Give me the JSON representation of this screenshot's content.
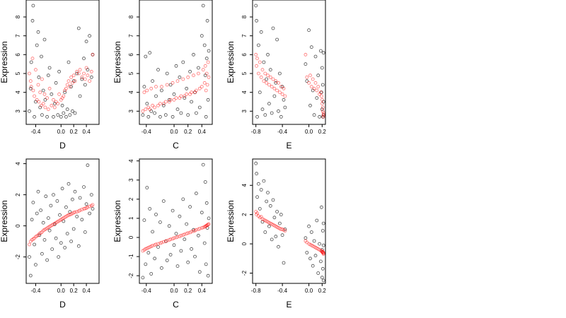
{
  "chart_data": [
    {
      "type": "scatter",
      "xlabel": "D",
      "ylabel": "Expression",
      "xlim": [
        -0.55,
        0.6
      ],
      "ylim": [
        2.3,
        8.9
      ],
      "xticks": [
        "-0.4",
        "0.0",
        "0.2",
        "0.4"
      ],
      "xtick_values": [
        -0.4,
        0.0,
        0.2,
        0.4
      ],
      "yticks": [
        "3",
        "4",
        "5",
        "6",
        "7",
        "8"
      ],
      "ytick_values": [
        3,
        4,
        5,
        6,
        7,
        8
      ],
      "grid": false,
      "x": [
        -0.5,
        -0.48,
        -0.47,
        -0.45,
        -0.44,
        -0.42,
        -0.4,
        -0.38,
        -0.36,
        -0.35,
        -0.33,
        -0.31,
        -0.3,
        -0.28,
        -0.26,
        -0.25,
        -0.22,
        -0.2,
        -0.18,
        -0.15,
        -0.12,
        -0.1,
        -0.08,
        -0.05,
        -0.03,
        0.0,
        0.02,
        0.04,
        0.06,
        0.08,
        0.1,
        0.12,
        0.14,
        0.16,
        0.18,
        0.2,
        0.22,
        0.25,
        0.28,
        0.3,
        0.33,
        0.36,
        0.38,
        0.4,
        0.42,
        0.45,
        0.48,
        0.5
      ],
      "series": [
        {
          "color": "#000000",
          "values": [
            3.0,
            4.2,
            5.6,
            7.8,
            8.6,
            2.7,
            3.5,
            6.5,
            7.2,
            4.8,
            3.2,
            5.9,
            2.8,
            4.1,
            6.8,
            3.6,
            2.7,
            4.9,
            5.3,
            3.9,
            2.7,
            3.4,
            4.5,
            2.8,
            5.1,
            2.7,
            3.3,
            2.9,
            4.0,
            2.7,
            3.1,
            5.6,
            2.8,
            4.3,
            3.0,
            4.6,
            2.9,
            5.0,
            7.4,
            3.8,
            4.7,
            5.8,
            4.4,
            6.7,
            5.2,
            7.0,
            4.8,
            6.0
          ]
        },
        {
          "color": "#ff0000",
          "values": [
            5.0,
            4.6,
            4.3,
            5.8,
            4.1,
            3.8,
            5.2,
            3.6,
            4.4,
            3.5,
            4.0,
            3.3,
            4.7,
            3.4,
            3.9,
            3.2,
            3.7,
            3.1,
            4.2,
            3.3,
            3.6,
            3.2,
            3.5,
            3.4,
            3.9,
            3.6,
            3.7,
            3.8,
            4.1,
            4.2,
            4.4,
            4.6,
            4.3,
            4.8,
            4.5,
            4.9,
            4.6,
            5.1,
            5.0,
            5.2,
            4.8,
            5.0,
            4.7,
            5.3,
            4.9,
            4.6,
            5.1,
            6.0
          ]
        }
      ]
    },
    {
      "type": "scatter",
      "xlabel": "C",
      "ylabel": "Expression",
      "xlim": [
        -0.5,
        0.55
      ],
      "ylim": [
        2.3,
        8.9
      ],
      "xticks": [
        "-0.4",
        "0.0",
        "0.2",
        "0.4"
      ],
      "xtick_values": [
        -0.4,
        0.0,
        0.2,
        0.4
      ],
      "yticks": [
        "3",
        "4",
        "5",
        "6",
        "7",
        "8"
      ],
      "ytick_values": [
        3,
        4,
        5,
        6,
        7,
        8
      ],
      "grid": false,
      "x": [
        -0.45,
        -0.43,
        -0.41,
        -0.39,
        -0.37,
        -0.35,
        -0.33,
        -0.31,
        -0.28,
        -0.26,
        -0.23,
        -0.2,
        -0.18,
        -0.15,
        -0.12,
        -0.1,
        -0.07,
        -0.05,
        -0.02,
        0.0,
        0.03,
        0.05,
        0.08,
        0.1,
        0.13,
        0.15,
        0.18,
        0.2,
        0.23,
        0.25,
        0.28,
        0.3,
        0.32,
        0.35,
        0.37,
        0.4,
        0.42,
        0.44,
        0.45,
        0.46,
        0.47,
        0.48,
        0.49,
        0.5
      ],
      "series": [
        {
          "color": "#000000",
          "values": [
            2.8,
            4.3,
            5.9,
            3.4,
            2.7,
            6.1,
            3.0,
            4.6,
            2.9,
            3.8,
            5.2,
            2.7,
            4.1,
            3.3,
            2.8,
            5.0,
            3.6,
            4.4,
            2.7,
            3.9,
            5.4,
            3.1,
            4.8,
            2.9,
            5.6,
            3.7,
            4.2,
            2.8,
            5.1,
            3.5,
            6.0,
            4.0,
            2.9,
            5.3,
            3.2,
            7.0,
            8.6,
            6.5,
            4.9,
            2.7,
            5.8,
            7.8,
            3.6,
            6.2
          ]
        },
        {
          "color": "#ff0000",
          "values": [
            3.0,
            4.0,
            3.1,
            4.1,
            3.2,
            3.1,
            4.2,
            3.3,
            3.2,
            4.3,
            3.3,
            3.4,
            4.3,
            3.4,
            3.5,
            4.4,
            3.5,
            3.6,
            4.5,
            3.6,
            3.7,
            4.6,
            3.7,
            3.8,
            4.7,
            3.8,
            3.9,
            4.8,
            3.9,
            4.0,
            4.9,
            4.0,
            4.1,
            5.0,
            4.2,
            4.3,
            5.2,
            4.5,
            5.4,
            4.1,
            5.0,
            4.4,
            5.6,
            4.8
          ]
        }
      ]
    },
    {
      "type": "scatter",
      "xlabel": "E",
      "ylabel": "Expression",
      "xlim": [
        -0.85,
        0.25
      ],
      "ylim": [
        2.3,
        8.9
      ],
      "xticks": [
        "-0.8",
        "-0.4",
        "0.0",
        "0.2"
      ],
      "xtick_values": [
        -0.8,
        -0.4,
        0.0,
        0.2
      ],
      "yticks": [
        "3",
        "4",
        "5",
        "6",
        "7",
        "8"
      ],
      "ytick_values": [
        3,
        4,
        5,
        6,
        7,
        8
      ],
      "grid": false,
      "x": [
        -0.8,
        -0.79,
        -0.78,
        -0.76,
        -0.74,
        -0.72,
        -0.7,
        -0.68,
        -0.66,
        -0.64,
        -0.62,
        -0.6,
        -0.58,
        -0.56,
        -0.54,
        -0.52,
        -0.5,
        -0.48,
        -0.46,
        -0.44,
        -0.42,
        -0.4,
        -0.38,
        -0.36,
        -0.05,
        -0.03,
        0.0,
        0.02,
        0.04,
        0.06,
        0.08,
        0.1,
        0.12,
        0.14,
        0.16,
        0.18,
        0.19,
        0.2,
        0.2,
        0.21,
        0.21,
        0.22,
        0.22,
        0.22
      ],
      "series": [
        {
          "color": "#000000",
          "values": [
            8.6,
            7.8,
            2.7,
            6.5,
            4.0,
            7.2,
            3.1,
            5.6,
            2.8,
            4.7,
            6.0,
            3.4,
            5.2,
            2.9,
            7.4,
            3.8,
            4.5,
            6.8,
            3.0,
            5.0,
            2.7,
            4.3,
            3.6,
            3.2,
            5.5,
            4.6,
            7.3,
            3.3,
            6.4,
            4.1,
            2.8,
            5.9,
            3.7,
            4.9,
            2.7,
            6.2,
            4.0,
            3.1,
            5.3,
            2.7,
            4.4,
            6.1,
            3.5,
            2.8
          ]
        },
        {
          "color": "#ff0000",
          "values": [
            6.0,
            5.4,
            5.8,
            5.0,
            5.6,
            4.8,
            5.2,
            4.6,
            5.0,
            4.5,
            4.9,
            4.4,
            4.8,
            4.3,
            4.7,
            4.2,
            4.6,
            4.1,
            4.5,
            4.0,
            4.3,
            3.9,
            4.2,
            3.8,
            6.0,
            4.8,
            4.5,
            4.9,
            4.3,
            4.7,
            4.2,
            4.5,
            4.1,
            4.3,
            3.9,
            4.0,
            3.8,
            3.6,
            3.4,
            3.2,
            3.0,
            2.9,
            2.8,
            2.7
          ]
        }
      ]
    },
    {
      "type": "scatter",
      "xlabel": "D",
      "ylabel": "Expression",
      "xlim": [
        -0.55,
        0.6
      ],
      "ylim": [
        -3.7,
        4.3
      ],
      "xticks": [
        "-0.4",
        "0.0",
        "0.2",
        "0.4"
      ],
      "xtick_values": [
        -0.4,
        0.0,
        0.2,
        0.4
      ],
      "yticks": [
        "-2",
        "0",
        "2",
        "4"
      ],
      "ytick_values": [
        -2,
        0,
        2,
        4
      ],
      "grid": false,
      "x": [
        -0.5,
        -0.48,
        -0.46,
        -0.44,
        -0.42,
        -0.4,
        -0.38,
        -0.36,
        -0.34,
        -0.32,
        -0.3,
        -0.28,
        -0.26,
        -0.24,
        -0.22,
        -0.2,
        -0.18,
        -0.16,
        -0.14,
        -0.12,
        -0.1,
        -0.08,
        -0.06,
        -0.04,
        -0.02,
        0.0,
        0.02,
        0.04,
        0.06,
        0.08,
        0.1,
        0.12,
        0.14,
        0.16,
        0.18,
        0.2,
        0.22,
        0.25,
        0.28,
        0.3,
        0.33,
        0.36,
        0.38,
        0.4,
        0.42,
        0.45,
        0.48,
        0.5
      ],
      "series": [
        {
          "color": "#000000",
          "values": [
            -2.0,
            -3.2,
            0.4,
            1.5,
            -1.2,
            -2.5,
            0.8,
            2.2,
            -0.6,
            1.0,
            -1.8,
            0.2,
            -0.9,
            1.9,
            -2.2,
            0.5,
            -0.3,
            1.3,
            -1.5,
            2.0,
            0.1,
            -0.8,
            1.6,
            -2.0,
            0.7,
            -1.1,
            2.4,
            0.3,
            -1.4,
            1.2,
            -0.5,
            2.7,
            0.9,
            -1.0,
            1.7,
            -0.2,
            2.2,
            0.6,
            -1.3,
            1.8,
            0.4,
            2.5,
            -0.4,
            1.4,
            3.9,
            0.8,
            2.0,
            1.1
          ]
        },
        {
          "color": "#ff0000",
          "values": [
            -1.2,
            -1.0,
            -0.9,
            -0.85,
            -0.8,
            -0.7,
            -0.65,
            -0.6,
            -0.5,
            -0.45,
            -0.4,
            -0.3,
            -0.25,
            -0.2,
            -0.15,
            -0.1,
            -0.05,
            0.0,
            0.05,
            0.1,
            0.15,
            0.2,
            0.25,
            0.3,
            0.35,
            0.4,
            0.45,
            0.5,
            0.55,
            0.6,
            0.65,
            0.7,
            0.72,
            0.75,
            0.8,
            0.85,
            0.88,
            0.9,
            0.95,
            1.0,
            1.05,
            1.1,
            1.12,
            1.15,
            1.2,
            1.25,
            1.3,
            1.35
          ]
        }
      ]
    },
    {
      "type": "scatter",
      "xlabel": "C",
      "ylabel": "Expression",
      "xlim": [
        -0.5,
        0.55
      ],
      "ylim": [
        -2.4,
        4.1
      ],
      "xticks": [
        "-0.4",
        "0.0",
        "0.2",
        "0.4"
      ],
      "xtick_values": [
        -0.4,
        0.0,
        0.2,
        0.4
      ],
      "yticks": [
        "-2",
        "-1",
        "0",
        "1",
        "2",
        "3",
        "4"
      ],
      "ytick_values": [
        -2,
        -1,
        0,
        1,
        2,
        3,
        4
      ],
      "grid": false,
      "x": [
        -0.45,
        -0.43,
        -0.41,
        -0.39,
        -0.37,
        -0.35,
        -0.33,
        -0.31,
        -0.28,
        -0.26,
        -0.23,
        -0.2,
        -0.18,
        -0.15,
        -0.12,
        -0.1,
        -0.07,
        -0.05,
        -0.02,
        0.0,
        0.03,
        0.05,
        0.08,
        0.1,
        0.13,
        0.15,
        0.18,
        0.2,
        0.23,
        0.25,
        0.28,
        0.3,
        0.32,
        0.35,
        0.37,
        0.4,
        0.42,
        0.44,
        0.45,
        0.46,
        0.47,
        0.48,
        0.49,
        0.5
      ],
      "series": [
        {
          "color": "#000000",
          "values": [
            -2.1,
            0.9,
            -1.4,
            2.6,
            -0.8,
            1.5,
            -1.9,
            0.3,
            -1.1,
            1.2,
            -0.5,
            0.8,
            -1.6,
            1.9,
            -0.2,
            -1.2,
            0.6,
            -0.9,
            1.4,
            -0.4,
            0.2,
            -1.5,
            1.1,
            -0.7,
            2.0,
            -0.1,
            0.7,
            -1.3,
            1.6,
            -0.6,
            0.4,
            -1.0,
            2.3,
            0.1,
            -1.8,
            1.3,
            3.8,
            -0.3,
            2.9,
            -1.4,
            1.8,
            0.5,
            -2.0,
            1.0
          ]
        },
        {
          "color": "#ff0000",
          "values": [
            -0.7,
            -0.65,
            -0.6,
            -0.57,
            -0.53,
            -0.5,
            -0.47,
            -0.43,
            -0.4,
            -0.36,
            -0.33,
            -0.3,
            -0.27,
            -0.23,
            -0.2,
            -0.17,
            -0.13,
            -0.1,
            -0.07,
            -0.03,
            0.0,
            0.03,
            0.06,
            0.1,
            0.13,
            0.16,
            0.2,
            0.23,
            0.26,
            0.3,
            0.33,
            0.36,
            0.4,
            0.43,
            0.46,
            0.5,
            0.52,
            0.55,
            0.58,
            0.6,
            0.62,
            0.65,
            0.68,
            0.7
          ]
        }
      ]
    },
    {
      "type": "scatter",
      "xlabel": "E",
      "ylabel": "Expression",
      "xlim": [
        -0.85,
        0.25
      ],
      "ylim": [
        -2.7,
        5.8
      ],
      "xticks": [
        "-0.8",
        "-0.4",
        "0.0",
        "0.2"
      ],
      "xtick_values": [
        -0.8,
        -0.4,
        0.0,
        0.2
      ],
      "yticks": [
        "-2",
        "0",
        "2",
        "4"
      ],
      "ytick_values": [
        -2,
        0,
        2,
        4
      ],
      "grid": false,
      "x": [
        -0.8,
        -0.79,
        -0.78,
        -0.76,
        -0.74,
        -0.72,
        -0.7,
        -0.68,
        -0.66,
        -0.64,
        -0.62,
        -0.6,
        -0.58,
        -0.56,
        -0.54,
        -0.52,
        -0.5,
        -0.48,
        -0.46,
        -0.44,
        -0.42,
        -0.4,
        -0.38,
        -0.36,
        -0.05,
        -0.03,
        0.0,
        0.02,
        0.04,
        0.06,
        0.08,
        0.1,
        0.12,
        0.14,
        0.16,
        0.18,
        0.19,
        0.2,
        0.2,
        0.21,
        0.21,
        0.22,
        0.22,
        0.22
      ],
      "series": [
        {
          "color": "#000000",
          "values": [
            5.5,
            4.8,
            3.2,
            4.1,
            2.4,
            3.7,
            1.5,
            4.3,
            0.8,
            2.9,
            3.5,
            1.2,
            2.6,
            0.3,
            3.0,
            1.8,
            0.5,
            2.2,
            -0.2,
            1.4,
            2.0,
            0.6,
            -1.3,
            1.0,
            0.4,
            -0.6,
            1.2,
            -1.0,
            0.8,
            -1.5,
            0.2,
            -0.8,
            1.6,
            -2.0,
            0.0,
            -1.2,
            2.5,
            -0.4,
            -2.3,
            0.9,
            -1.7,
            -0.1,
            1.4,
            -2.5
          ]
        },
        {
          "color": "#ff0000",
          "values": [
            2.2,
            2.0,
            2.1,
            1.9,
            1.8,
            1.85,
            1.7,
            1.65,
            1.6,
            1.55,
            1.5,
            1.45,
            1.4,
            1.35,
            1.3,
            1.25,
            1.2,
            1.15,
            1.1,
            1.05,
            1.0,
            1.0,
            0.95,
            0.9,
            0.2,
            0.1,
            0.0,
            -0.05,
            -0.1,
            -0.15,
            -0.2,
            -0.25,
            -0.3,
            -0.35,
            -0.4,
            -0.45,
            -0.5,
            -0.55,
            -0.5,
            -0.6,
            -0.55,
            -0.65,
            -0.6,
            -0.7
          ]
        }
      ]
    }
  ]
}
